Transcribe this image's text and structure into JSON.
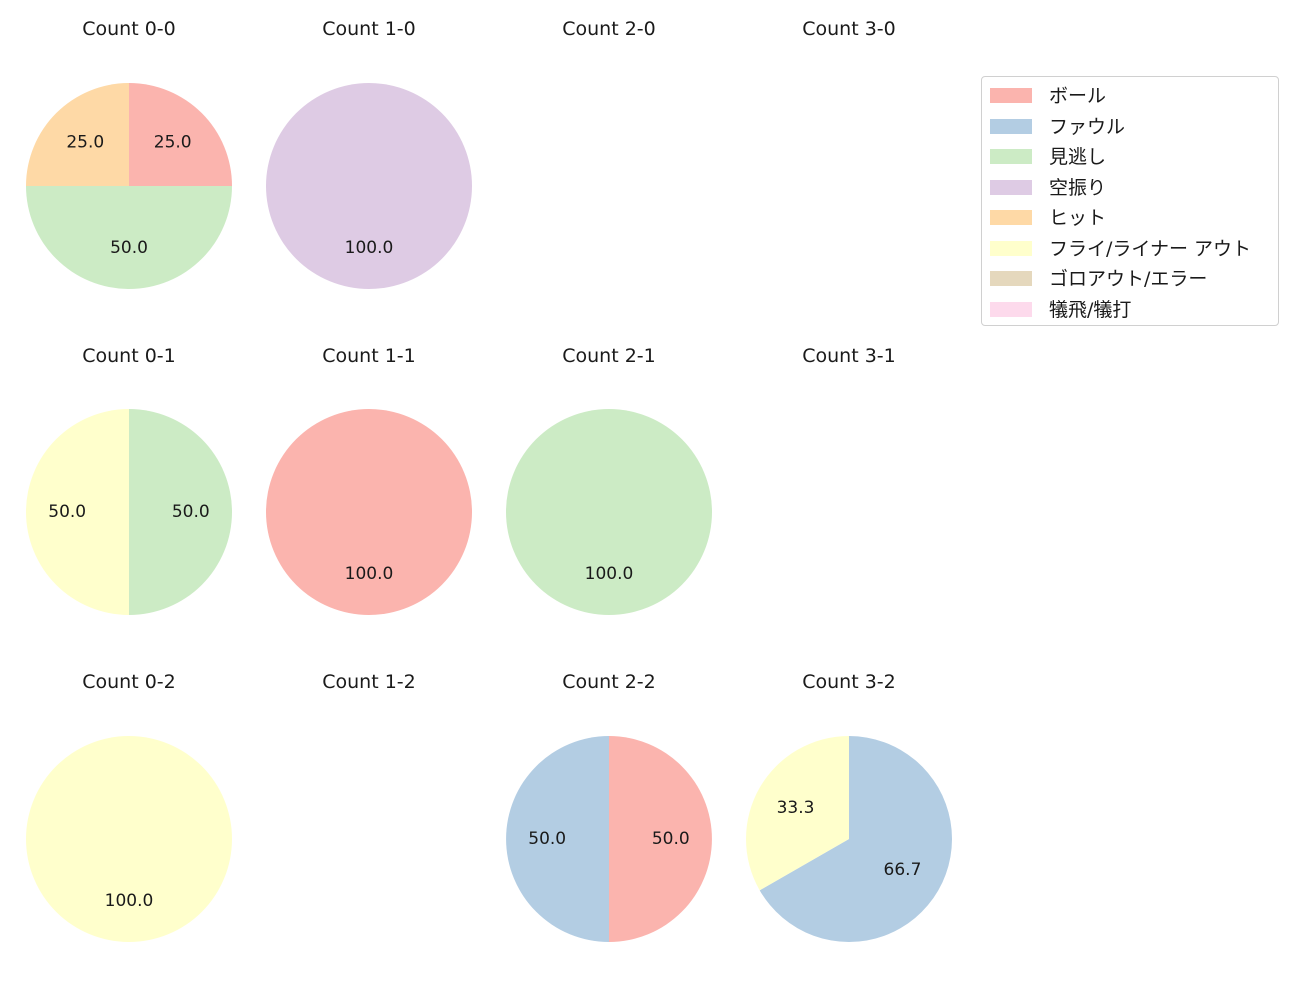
{
  "chart_data": {
    "type": "pie",
    "layout": {
      "rows": 3,
      "cols": 4,
      "start_angle": 90,
      "direction": "clockwise",
      "label_format": "%.1f"
    },
    "categories": [
      "ボール",
      "ファウル",
      "見逃し",
      "空振り",
      "ヒット",
      "フライ/ライナー アウト",
      "ゴロアウト/エラー",
      "犠飛/犠打"
    ],
    "colors": [
      "#fbb4ae",
      "#b3cde3",
      "#ccebc5",
      "#decbe4",
      "#fed9a6",
      "#ffffcc",
      "#e5d8bd",
      "#fddaec"
    ],
    "panels": [
      {
        "title": "Count 0-0",
        "row": 0,
        "col": 0,
        "slices": [
          {
            "category": "ボール",
            "value": 25.0
          },
          {
            "category": "見逃し",
            "value": 50.0
          },
          {
            "category": "ヒット",
            "value": 25.0
          }
        ]
      },
      {
        "title": "Count 1-0",
        "row": 0,
        "col": 1,
        "slices": [
          {
            "category": "空振り",
            "value": 100.0
          }
        ]
      },
      {
        "title": "Count 2-0",
        "row": 0,
        "col": 2,
        "slices": []
      },
      {
        "title": "Count 3-0",
        "row": 0,
        "col": 3,
        "slices": []
      },
      {
        "title": "Count 0-1",
        "row": 1,
        "col": 0,
        "slices": [
          {
            "category": "見逃し",
            "value": 50.0
          },
          {
            "category": "フライ/ライナー アウト",
            "value": 50.0
          }
        ]
      },
      {
        "title": "Count 1-1",
        "row": 1,
        "col": 1,
        "slices": [
          {
            "category": "ボール",
            "value": 100.0
          }
        ]
      },
      {
        "title": "Count 2-1",
        "row": 1,
        "col": 2,
        "slices": [
          {
            "category": "見逃し",
            "value": 100.0
          }
        ]
      },
      {
        "title": "Count 3-1",
        "row": 1,
        "col": 3,
        "slices": []
      },
      {
        "title": "Count 0-2",
        "row": 2,
        "col": 0,
        "slices": [
          {
            "category": "フライ/ライナー アウト",
            "value": 100.0
          }
        ]
      },
      {
        "title": "Count 1-2",
        "row": 2,
        "col": 1,
        "slices": []
      },
      {
        "title": "Count 2-2",
        "row": 2,
        "col": 2,
        "slices": [
          {
            "category": "ボール",
            "value": 50.0
          },
          {
            "category": "ファウル",
            "value": 50.0
          }
        ]
      },
      {
        "title": "Count 3-2",
        "row": 2,
        "col": 3,
        "slices": [
          {
            "category": "ファウル",
            "value": 66.7
          },
          {
            "category": "フライ/ライナー アウト",
            "value": 33.3
          }
        ]
      }
    ],
    "legend": {
      "position": "upper right",
      "entries": [
        "ボール",
        "ファウル",
        "見逃し",
        "空振り",
        "ヒット",
        "フライ/ライナー アウト",
        "ゴロアウト/エラー",
        "犠飛/犠打"
      ]
    }
  }
}
